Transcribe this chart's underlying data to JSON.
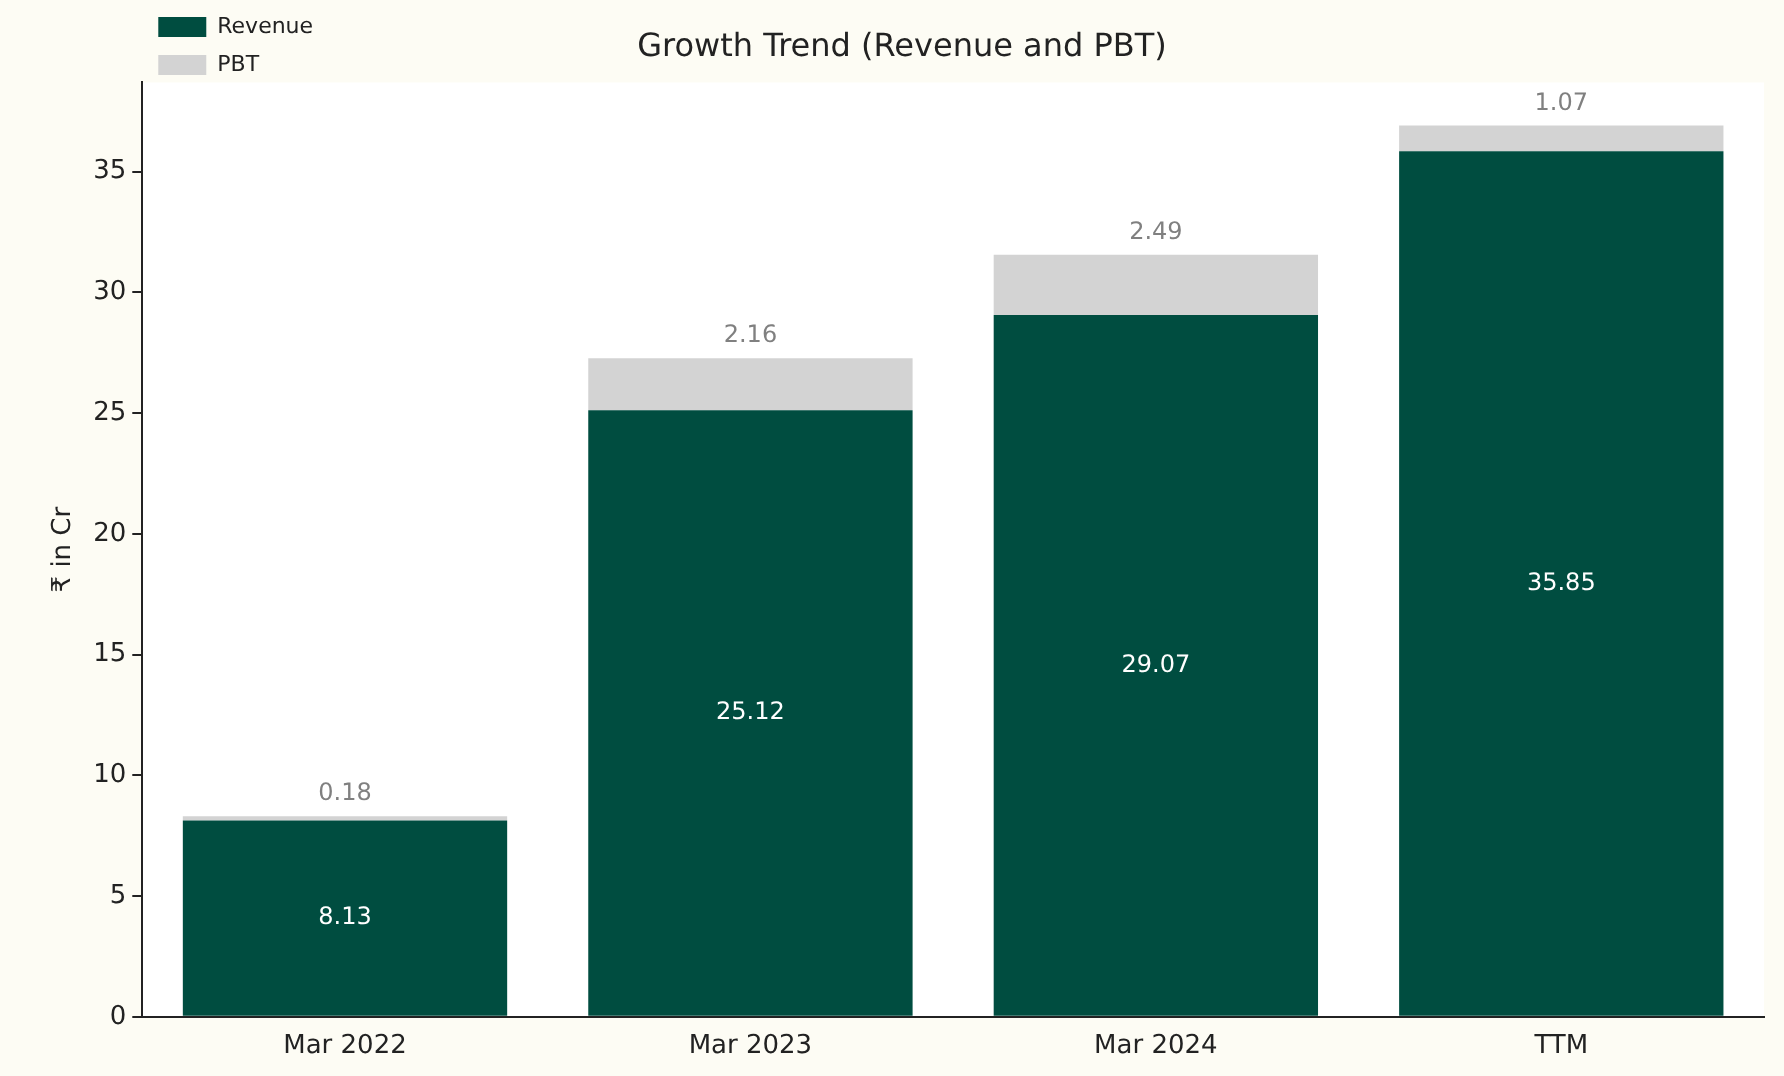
{
  "chart_data": {
    "type": "bar",
    "title": "Growth Trend (Revenue and PBT)",
    "ylabel": "₹ in Cr",
    "categories": [
      "Mar 2022",
      "Mar 2023",
      "Mar 2024",
      "TTM"
    ],
    "series": [
      {
        "name": "Revenue",
        "color": "#004d40",
        "values": [
          8.13,
          25.12,
          29.07,
          35.85
        ]
      },
      {
        "name": "PBT",
        "color": "#d3d3d3",
        "values": [
          0.18,
          2.16,
          2.49,
          1.07
        ]
      }
    ],
    "stacked": true,
    "data_labels": true,
    "ylim": [
      0,
      38.7
    ],
    "yticks": [
      0,
      5,
      10,
      15,
      20,
      25,
      30,
      35
    ],
    "grid": false,
    "legend": "top left"
  }
}
